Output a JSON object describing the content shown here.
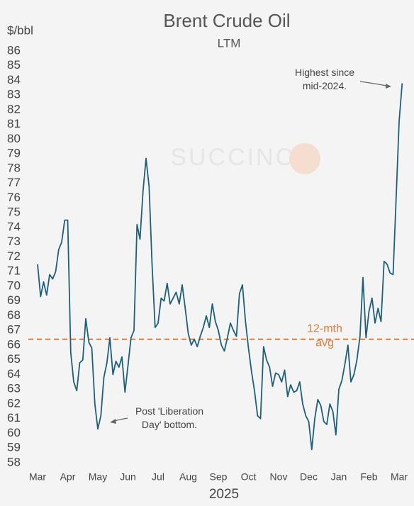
{
  "chart_data": {
    "type": "line",
    "title": "Brent Crude Oil",
    "subtitle": "LTM",
    "y_label": "$/bbl",
    "x_label": "2025",
    "watermark": "SUCCINCT",
    "color": "#1f5f7a",
    "categories": [
      "Mar",
      null,
      null,
      null,
      null,
      null,
      null,
      null,
      null,
      null,
      "Apr",
      null,
      null,
      null,
      null,
      null,
      null,
      null,
      null,
      null,
      "May",
      null,
      null,
      null,
      null,
      null,
      null,
      null,
      null,
      null,
      "Jun",
      null,
      null,
      null,
      null,
      null,
      null,
      null,
      null,
      null,
      "Jul",
      null,
      null,
      null,
      null,
      null,
      null,
      null,
      null,
      null,
      "Aug",
      null,
      null,
      null,
      null,
      null,
      null,
      null,
      null,
      null,
      "Sep",
      null,
      null,
      null,
      null,
      null,
      null,
      null,
      null,
      null,
      "Oct",
      null,
      null,
      null,
      null,
      null,
      null,
      null,
      null,
      null,
      "Nov",
      null,
      null,
      null,
      null,
      null,
      null,
      null,
      null,
      null,
      "Dec",
      null,
      null,
      null,
      null,
      null,
      null,
      null,
      null,
      null,
      "Jan",
      null,
      null,
      null,
      null,
      null,
      null,
      null,
      null,
      null,
      "Feb",
      null,
      null,
      null,
      null,
      null,
      null,
      null,
      null,
      null,
      "Mar",
      null
    ],
    "values": [
      71.5,
      69.3,
      70.3,
      69.4,
      70.8,
      70.5,
      71.0,
      72.5,
      73.0,
      74.5,
      74.5,
      65.5,
      63.5,
      62.9,
      64.8,
      65.0,
      67.8,
      66.2,
      65.8,
      62.0,
      60.3,
      61.2,
      63.8,
      64.8,
      66.5,
      64.0,
      64.9,
      64.5,
      65.2,
      62.8,
      64.6,
      66.5,
      67.0,
      74.2,
      73.2,
      76.5,
      78.7,
      76.8,
      71.5,
      67.2,
      67.5,
      69.2,
      69.0,
      70.2,
      68.8,
      69.2,
      69.6,
      68.8,
      70.1,
      68.5,
      66.8,
      66.0,
      66.4,
      65.9,
      66.6,
      67.2,
      68.0,
      67.2,
      68.8,
      67.6,
      67.0,
      66.0,
      65.6,
      66.5,
      67.5,
      67.0,
      66.6,
      69.5,
      70.1,
      67.6,
      65.8,
      64.2,
      62.9,
      61.2,
      61.0,
      65.9,
      65.0,
      64.5,
      63.2,
      64.1,
      64.0,
      63.5,
      64.3,
      62.5,
      63.3,
      62.8,
      62.9,
      63.5,
      62.0,
      61.2,
      60.8,
      58.9,
      61.0,
      62.3,
      61.9,
      60.8,
      60.6,
      62.0,
      61.5,
      59.9,
      63.0,
      63.6,
      64.7,
      66.0,
      63.5,
      64.0,
      65.0,
      66.6,
      70.6,
      66.5,
      68.3,
      69.2,
      67.5,
      68.5,
      67.6,
      71.7,
      71.5,
      70.9,
      70.8,
      76.0,
      81.2,
      83.8
    ],
    "ylim": [
      58,
      86
    ],
    "yticks": [
      58,
      59,
      60,
      61,
      62,
      63,
      64,
      65,
      66,
      67,
      68,
      69,
      70,
      71,
      72,
      73,
      74,
      75,
      76,
      77,
      78,
      79,
      80,
      81,
      82,
      83,
      84,
      85,
      86
    ],
    "reference_line": {
      "value": 66.4,
      "color": "#e07b39",
      "label": [
        "12-mth",
        "avg"
      ]
    },
    "annotations": [
      {
        "lines": [
          "Highest since",
          "mid-2024."
        ]
      },
      {
        "lines": [
          "Post 'Liberation",
          "Day' bottom."
        ]
      }
    ]
  }
}
